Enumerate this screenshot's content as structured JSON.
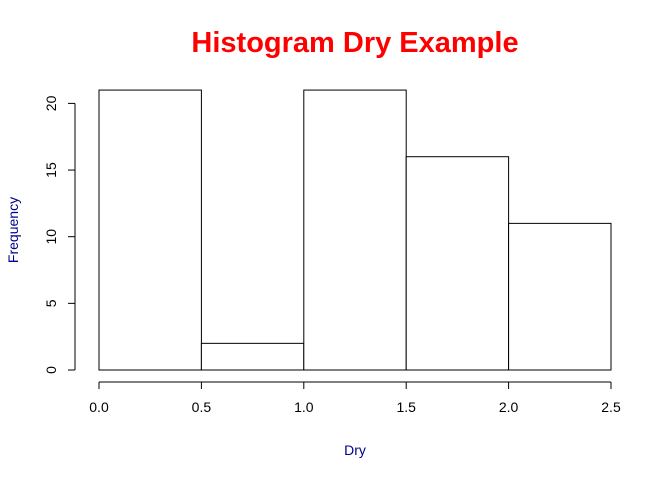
{
  "colors": {
    "title": "#ff0000",
    "axis_labels": "#00008b",
    "bar_fill": "#ffffff",
    "bar_stroke": "#000000",
    "axis": "#000000"
  },
  "chart_data": {
    "type": "bar",
    "title": "Histogram Dry Example",
    "xlabel": "Dry",
    "ylabel": "Frequency",
    "bins": [
      {
        "x0": 0.0,
        "x1": 0.5,
        "count": 21
      },
      {
        "x0": 0.5,
        "x1": 1.0,
        "count": 2
      },
      {
        "x0": 1.0,
        "x1": 1.5,
        "count": 21
      },
      {
        "x0": 1.5,
        "x1": 2.0,
        "count": 16
      },
      {
        "x0": 2.0,
        "x1": 2.5,
        "count": 11
      }
    ],
    "xlim": [
      0,
      2.5
    ],
    "ylim": [
      0,
      21
    ],
    "x_ticks": [
      "0.0",
      "0.5",
      "1.0",
      "1.5",
      "2.0",
      "2.5"
    ],
    "y_ticks": [
      "0",
      "5",
      "10",
      "15",
      "20"
    ],
    "grid": false,
    "legend": "none"
  }
}
